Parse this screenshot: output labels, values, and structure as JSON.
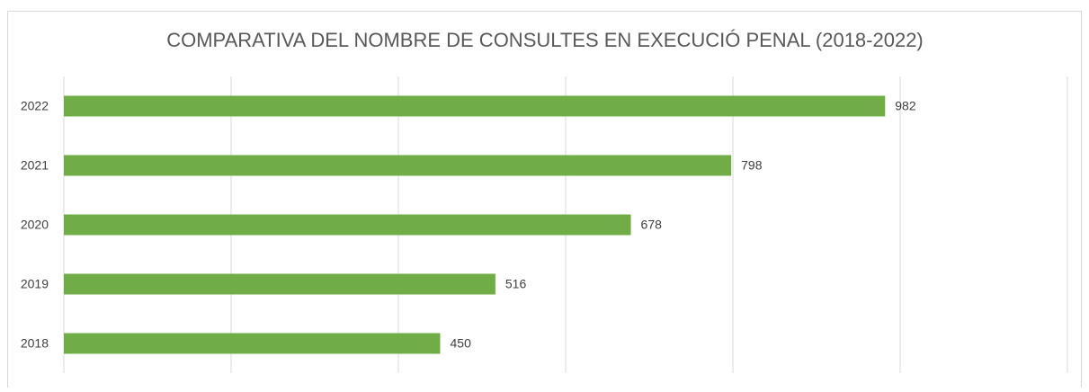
{
  "chart_data": {
    "type": "bar",
    "orientation": "horizontal",
    "title": "COMPARATIVA DEL NOMBRE DE CONSULTES EN EXECUCIÓ PENAL (2018-2022)",
    "categories": [
      "2022",
      "2021",
      "2020",
      "2019",
      "2018"
    ],
    "values": [
      982,
      798,
      678,
      516,
      450
    ],
    "color": "#70ad47",
    "xlim": [
      0,
      1200
    ],
    "xticks": [
      0,
      200,
      400,
      600,
      800,
      1000,
      1200
    ],
    "grid": true
  }
}
